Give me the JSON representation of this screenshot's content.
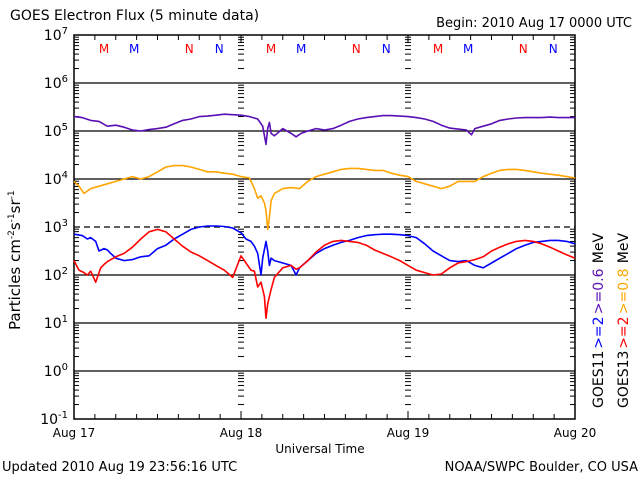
{
  "header": {
    "title": "GOES Electron Flux (5 minute data)",
    "begin": "Begin: 2010 Aug 17 0000 UTC"
  },
  "footer": {
    "updated": "Updated 2010 Aug 19 23:56:16 UTC",
    "credit": "NOAA/SWPC Boulder, CO USA"
  },
  "colors": {
    "goes11_2mev": "#0000ff",
    "goes13_2mev": "#ff0000",
    "goes11_06mev": "#5a0fb4",
    "goes13_08mev": "#ffa500",
    "marker_goes13": "#ff0000",
    "marker_goes11": "#0000ff"
  },
  "legend": {
    "right_col1": [
      {
        "text": "GOES11",
        "color": "#000000"
      },
      {
        "text": ">=2",
        "color": "#0000ff"
      },
      {
        "text": ">=0.6",
        "color": "#5a0fb4"
      },
      {
        "text": "MeV",
        "color": "#000000"
      }
    ],
    "right_col2": [
      {
        "text": "GOES13",
        "color": "#000000"
      },
      {
        "text": ">=2",
        "color": "#ff0000"
      },
      {
        "text": ">=0.8",
        "color": "#ffa500"
      },
      {
        "text": "MeV",
        "color": "#000000"
      }
    ]
  },
  "markers": [
    {
      "label": "M",
      "day": 0.18,
      "color": "#ff0000"
    },
    {
      "label": "M",
      "day": 0.36,
      "color": "#0000ff"
    },
    {
      "label": "N",
      "day": 0.69,
      "color": "#ff0000"
    },
    {
      "label": "N",
      "day": 0.87,
      "color": "#0000ff"
    },
    {
      "label": "M",
      "day": 1.18,
      "color": "#ff0000"
    },
    {
      "label": "M",
      "day": 1.36,
      "color": "#0000ff"
    },
    {
      "label": "N",
      "day": 1.69,
      "color": "#ff0000"
    },
    {
      "label": "N",
      "day": 1.87,
      "color": "#0000ff"
    },
    {
      "label": "M",
      "day": 2.18,
      "color": "#ff0000"
    },
    {
      "label": "M",
      "day": 2.36,
      "color": "#0000ff"
    },
    {
      "label": "N",
      "day": 2.69,
      "color": "#ff0000"
    },
    {
      "label": "N",
      "day": 2.87,
      "color": "#0000ff"
    }
  ],
  "chart_data": {
    "type": "line",
    "title": "GOES Electron Flux (5 minute data)",
    "xlabel": "Universal Time",
    "ylabel": "Particles cm-2 s-1 sr-1",
    "yscale": "log",
    "ylim": [
      0.1,
      10000000
    ],
    "xlim_days": [
      0,
      3
    ],
    "x_tick_labels": [
      "Aug 17",
      "Aug 18",
      "Aug 19",
      "Aug 20"
    ],
    "y_tick_labels": [
      {
        "base": "10",
        "exp": "7"
      },
      {
        "base": "10",
        "exp": "6"
      },
      {
        "base": "10",
        "exp": "5"
      },
      {
        "base": "10",
        "exp": "4"
      },
      {
        "base": "10",
        "exp": "3"
      },
      {
        "base": "10",
        "exp": "2"
      },
      {
        "base": "10",
        "exp": "1"
      },
      {
        "base": "10",
        "exp": "0"
      },
      {
        "base": "10",
        "exp": "-1"
      }
    ],
    "threshold_line": {
      "value": 1000,
      "style": "dashed"
    },
    "grid_decades_solid": [
      1000000,
      100000,
      10000,
      100,
      10,
      1
    ],
    "series": [
      {
        "name": "GOES11 >=0.6 MeV",
        "color": "#5a0fb4",
        "x_days": [
          0.0,
          0.05,
          0.1,
          0.15,
          0.2,
          0.25,
          0.3,
          0.35,
          0.4,
          0.45,
          0.5,
          0.55,
          0.6,
          0.65,
          0.7,
          0.75,
          0.8,
          0.85,
          0.9,
          0.95,
          1.0,
          1.05,
          1.1,
          1.13,
          1.15,
          1.16,
          1.17,
          1.18,
          1.2,
          1.25,
          1.3,
          1.33,
          1.36,
          1.4,
          1.45,
          1.5,
          1.55,
          1.6,
          1.65,
          1.7,
          1.75,
          1.8,
          1.85,
          1.9,
          1.95,
          2.0,
          2.05,
          2.1,
          2.15,
          2.2,
          2.25,
          2.3,
          2.35,
          2.38,
          2.4,
          2.45,
          2.5,
          2.55,
          2.6,
          2.65,
          2.7,
          2.75,
          2.8,
          2.85,
          2.9,
          2.95,
          3.0
        ],
        "log_values": [
          5.3,
          5.28,
          5.22,
          5.2,
          5.1,
          5.12,
          5.08,
          5.02,
          5.0,
          5.03,
          5.05,
          5.08,
          5.15,
          5.22,
          5.25,
          5.3,
          5.31,
          5.33,
          5.35,
          5.34,
          5.33,
          5.3,
          5.25,
          5.1,
          4.72,
          5.05,
          5.18,
          4.95,
          4.9,
          5.05,
          4.95,
          4.88,
          4.95,
          5.0,
          5.05,
          5.02,
          5.05,
          5.12,
          5.2,
          5.25,
          5.28,
          5.3,
          5.32,
          5.32,
          5.31,
          5.3,
          5.28,
          5.25,
          5.2,
          5.12,
          5.06,
          5.04,
          5.02,
          4.92,
          5.05,
          5.1,
          5.15,
          5.22,
          5.25,
          5.27,
          5.28,
          5.28,
          5.28,
          5.29,
          5.28,
          5.28,
          5.28
        ]
      },
      {
        "name": "GOES13 >=0.8 MeV",
        "color": "#ffa500",
        "x_days": [
          0.0,
          0.03,
          0.06,
          0.1,
          0.15,
          0.2,
          0.25,
          0.3,
          0.35,
          0.4,
          0.45,
          0.5,
          0.55,
          0.6,
          0.65,
          0.7,
          0.75,
          0.8,
          0.85,
          0.9,
          0.95,
          1.0,
          1.05,
          1.08,
          1.1,
          1.12,
          1.14,
          1.15,
          1.16,
          1.17,
          1.18,
          1.2,
          1.25,
          1.3,
          1.35,
          1.4,
          1.45,
          1.5,
          1.55,
          1.6,
          1.65,
          1.7,
          1.75,
          1.8,
          1.85,
          1.9,
          1.95,
          2.0,
          2.05,
          2.1,
          2.15,
          2.2,
          2.25,
          2.3,
          2.35,
          2.4,
          2.45,
          2.5,
          2.55,
          2.6,
          2.65,
          2.7,
          2.75,
          2.8,
          2.85,
          2.9,
          2.95,
          3.0
        ],
        "log_values": [
          3.95,
          3.85,
          3.7,
          3.8,
          3.85,
          3.9,
          3.95,
          4.0,
          4.05,
          4.0,
          4.05,
          4.15,
          4.25,
          4.28,
          4.28,
          4.25,
          4.2,
          4.15,
          4.15,
          4.12,
          4.1,
          4.05,
          4.02,
          3.8,
          3.6,
          3.65,
          3.5,
          3.35,
          2.95,
          3.2,
          3.55,
          3.7,
          3.8,
          3.82,
          3.8,
          3.95,
          4.05,
          4.1,
          4.15,
          4.2,
          4.22,
          4.22,
          4.2,
          4.18,
          4.18,
          4.12,
          4.08,
          4.05,
          3.95,
          3.9,
          3.85,
          3.8,
          3.85,
          3.95,
          3.95,
          3.95,
          4.05,
          4.12,
          4.18,
          4.2,
          4.2,
          4.18,
          4.15,
          4.12,
          4.1,
          4.08,
          4.05,
          4.02
        ]
      },
      {
        "name": "GOES11 >=2 MeV",
        "color": "#0000ff",
        "x_days": [
          0.0,
          0.05,
          0.08,
          0.1,
          0.13,
          0.15,
          0.18,
          0.2,
          0.22,
          0.25,
          0.3,
          0.35,
          0.4,
          0.45,
          0.5,
          0.55,
          0.6,
          0.65,
          0.7,
          0.75,
          0.8,
          0.85,
          0.9,
          0.95,
          1.0,
          1.03,
          1.06,
          1.08,
          1.1,
          1.12,
          1.13,
          1.15,
          1.16,
          1.17,
          1.18,
          1.2,
          1.25,
          1.3,
          1.33,
          1.35,
          1.4,
          1.45,
          1.5,
          1.55,
          1.6,
          1.65,
          1.7,
          1.75,
          1.8,
          1.85,
          1.9,
          1.95,
          2.0,
          2.05,
          2.1,
          2.15,
          2.2,
          2.25,
          2.3,
          2.35,
          2.4,
          2.45,
          2.5,
          2.55,
          2.6,
          2.65,
          2.7,
          2.75,
          2.8,
          2.85,
          2.9,
          2.95,
          3.0
        ],
        "log_values": [
          2.85,
          2.82,
          2.75,
          2.78,
          2.7,
          2.5,
          2.55,
          2.52,
          2.45,
          2.35,
          2.3,
          2.32,
          2.38,
          2.4,
          2.55,
          2.62,
          2.75,
          2.85,
          2.95,
          3.0,
          3.02,
          3.02,
          3.01,
          2.98,
          2.88,
          2.75,
          2.7,
          2.6,
          2.45,
          2.0,
          2.35,
          2.7,
          2.5,
          2.2,
          2.35,
          2.3,
          2.25,
          2.2,
          2.0,
          2.15,
          2.3,
          2.45,
          2.55,
          2.62,
          2.68,
          2.72,
          2.78,
          2.82,
          2.84,
          2.85,
          2.85,
          2.84,
          2.82,
          2.78,
          2.65,
          2.5,
          2.4,
          2.3,
          2.28,
          2.3,
          2.2,
          2.15,
          2.25,
          2.35,
          2.45,
          2.55,
          2.62,
          2.68,
          2.7,
          2.72,
          2.72,
          2.7,
          2.65
        ]
      },
      {
        "name": "GOES13 >=2 MeV",
        "color": "#ff0000",
        "x_days": [
          0.0,
          0.03,
          0.06,
          0.08,
          0.1,
          0.13,
          0.16,
          0.18,
          0.2,
          0.25,
          0.3,
          0.35,
          0.4,
          0.45,
          0.5,
          0.55,
          0.6,
          0.65,
          0.7,
          0.75,
          0.8,
          0.85,
          0.9,
          0.95,
          1.0,
          1.03,
          1.06,
          1.08,
          1.1,
          1.12,
          1.14,
          1.15,
          1.16,
          1.18,
          1.2,
          1.25,
          1.3,
          1.33,
          1.35,
          1.4,
          1.45,
          1.5,
          1.55,
          1.6,
          1.65,
          1.7,
          1.75,
          1.8,
          1.85,
          1.9,
          1.95,
          2.0,
          2.05,
          2.1,
          2.15,
          2.2,
          2.25,
          2.3,
          2.35,
          2.4,
          2.45,
          2.5,
          2.55,
          2.6,
          2.65,
          2.7,
          2.75,
          2.8,
          2.85,
          2.9,
          2.95,
          3.0
        ],
        "log_values": [
          2.3,
          2.1,
          2.05,
          2.0,
          2.08,
          1.85,
          2.15,
          2.22,
          2.28,
          2.38,
          2.45,
          2.58,
          2.75,
          2.9,
          2.95,
          2.9,
          2.75,
          2.6,
          2.48,
          2.4,
          2.3,
          2.2,
          2.1,
          1.95,
          2.4,
          2.25,
          2.1,
          2.08,
          1.75,
          1.85,
          1.55,
          1.1,
          1.4,
          1.7,
          1.95,
          2.15,
          2.2,
          2.12,
          2.15,
          2.3,
          2.48,
          2.62,
          2.7,
          2.72,
          2.7,
          2.68,
          2.62,
          2.52,
          2.45,
          2.38,
          2.3,
          2.2,
          2.1,
          2.05,
          2.0,
          2.02,
          2.15,
          2.25,
          2.28,
          2.32,
          2.38,
          2.5,
          2.58,
          2.65,
          2.7,
          2.72,
          2.7,
          2.65,
          2.58,
          2.5,
          2.42,
          2.35
        ]
      }
    ]
  }
}
